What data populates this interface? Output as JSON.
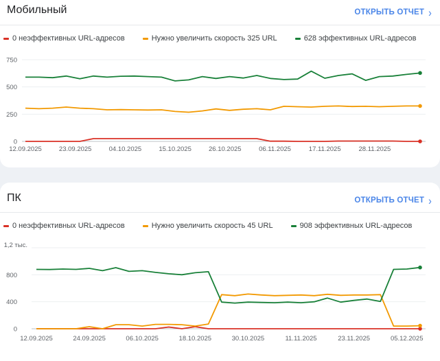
{
  "colors": {
    "poor": "#d93025",
    "needs_improvement": "#f29900",
    "good": "#188038",
    "link": "#4b86e8"
  },
  "cards": [
    {
      "title": "Мобильный",
      "open_report": "ОТКРЫТЬ ОТЧЕТ",
      "chevron_icon": "chevron-right-icon",
      "legend": [
        "0 неэффективных URL-адресов",
        "Нужно увеличить скорость 325 URL",
        "628 эффективных URL-адресов"
      ]
    },
    {
      "title": "ПК",
      "open_report": "ОТКРЫТЬ ОТЧЕТ",
      "chevron_icon": "chevron-right-icon",
      "legend": [
        "0 неэффективных URL-адресов",
        "Нужно увеличить скорость 45 URL",
        "908 эффективных URL-адресов"
      ]
    }
  ],
  "chart_data": [
    {
      "type": "line",
      "ylim": [
        0,
        750
      ],
      "y_ticks": [
        0,
        250,
        500,
        750
      ],
      "y_tick_labels": [
        "0",
        "250",
        "500",
        "750"
      ],
      "x_tick_labels": [
        "12.09.2025",
        "23.09.2025",
        "04.10.2025",
        "15.10.2025",
        "26.10.2025",
        "06.11.2025",
        "17.11.2025",
        "28.11.2025"
      ],
      "grid": true,
      "legend": "top",
      "x": [
        "12.09.2025",
        "15.09.2025",
        "18.09.2025",
        "21.09.2025",
        "24.09.2025",
        "27.09.2025",
        "30.09.2025",
        "03.10.2025",
        "06.10.2025",
        "09.10.2025",
        "12.10.2025",
        "15.10.2025",
        "18.10.2025",
        "21.10.2025",
        "24.10.2025",
        "27.10.2025",
        "30.10.2025",
        "02.11.2025",
        "05.11.2025",
        "08.11.2025",
        "11.11.2025",
        "14.11.2025",
        "17.11.2025",
        "20.11.2025",
        "23.11.2025",
        "26.11.2025",
        "29.11.2025",
        "02.12.2025",
        "05.12.2025",
        "08.12.2025"
      ],
      "series": [
        {
          "name": "0 неэффективных URL-адресов",
          "color": "#d93025",
          "values": [
            0,
            0,
            0,
            0,
            0,
            25,
            25,
            25,
            25,
            25,
            25,
            25,
            25,
            25,
            25,
            25,
            25,
            25,
            2,
            2,
            0,
            0,
            0,
            3,
            3,
            3,
            3,
            3,
            0,
            0
          ]
        },
        {
          "name": "Нужно увеличить скорость 325 URL",
          "color": "#f29900",
          "values": [
            305,
            300,
            305,
            315,
            305,
            300,
            290,
            292,
            290,
            288,
            290,
            275,
            268,
            280,
            298,
            285,
            295,
            300,
            290,
            322,
            318,
            315,
            322,
            325,
            320,
            322,
            318,
            322,
            325,
            325
          ]
        },
        {
          "name": "628 эффективных URL-адресов",
          "color": "#188038",
          "values": [
            590,
            590,
            585,
            600,
            575,
            600,
            590,
            598,
            600,
            595,
            590,
            555,
            565,
            595,
            578,
            595,
            582,
            605,
            578,
            568,
            572,
            645,
            580,
            605,
            620,
            560,
            595,
            600,
            615,
            628
          ]
        }
      ]
    },
    {
      "type": "line",
      "ylim": [
        0,
        1200
      ],
      "y_ticks": [
        0,
        400,
        800,
        1200
      ],
      "y_tick_labels": [
        "0",
        "400",
        "800",
        "1,2 тыс."
      ],
      "x_tick_labels": [
        "12.09.2025",
        "24.09.2025",
        "06.10.2025",
        "18.10.2025",
        "30.10.2025",
        "11.11.2025",
        "23.11.2025",
        "05.12.2025"
      ],
      "grid": true,
      "legend": "top",
      "x": [
        "12.09.2025",
        "15.09.2025",
        "18.09.2025",
        "21.09.2025",
        "24.09.2025",
        "27.09.2025",
        "30.09.2025",
        "03.10.2025",
        "06.10.2025",
        "09.10.2025",
        "12.10.2025",
        "15.10.2025",
        "18.10.2025",
        "21.10.2025",
        "24.10.2025",
        "27.10.2025",
        "30.10.2025",
        "02.11.2025",
        "05.11.2025",
        "08.11.2025",
        "11.11.2025",
        "14.11.2025",
        "17.11.2025",
        "20.11.2025",
        "23.11.2025",
        "26.11.2025",
        "29.11.2025",
        "02.12.2025",
        "05.12.2025",
        "08.12.2025"
      ],
      "series": [
        {
          "name": "0 неэффективных URL-адресов",
          "color": "#d93025",
          "values": [
            0,
            0,
            0,
            0,
            0,
            0,
            0,
            0,
            0,
            0,
            25,
            0,
            30,
            0,
            0,
            0,
            0,
            0,
            0,
            0,
            0,
            0,
            0,
            0,
            0,
            0,
            0,
            0,
            0,
            0
          ]
        },
        {
          "name": "Нужно увеличить скорость 45 URL",
          "color": "#f29900",
          "values": [
            0,
            0,
            0,
            0,
            30,
            0,
            60,
            60,
            40,
            65,
            65,
            60,
            40,
            70,
            505,
            490,
            515,
            500,
            490,
            495,
            500,
            490,
            510,
            495,
            500,
            500,
            505,
            40,
            40,
            45
          ]
        },
        {
          "name": "908 эффективных URL-адресов",
          "color": "#188038",
          "values": [
            880,
            878,
            885,
            880,
            895,
            860,
            905,
            850,
            860,
            835,
            815,
            800,
            830,
            845,
            395,
            380,
            395,
            390,
            385,
            395,
            385,
            400,
            455,
            395,
            420,
            440,
            405,
            880,
            885,
            908
          ]
        }
      ]
    }
  ]
}
